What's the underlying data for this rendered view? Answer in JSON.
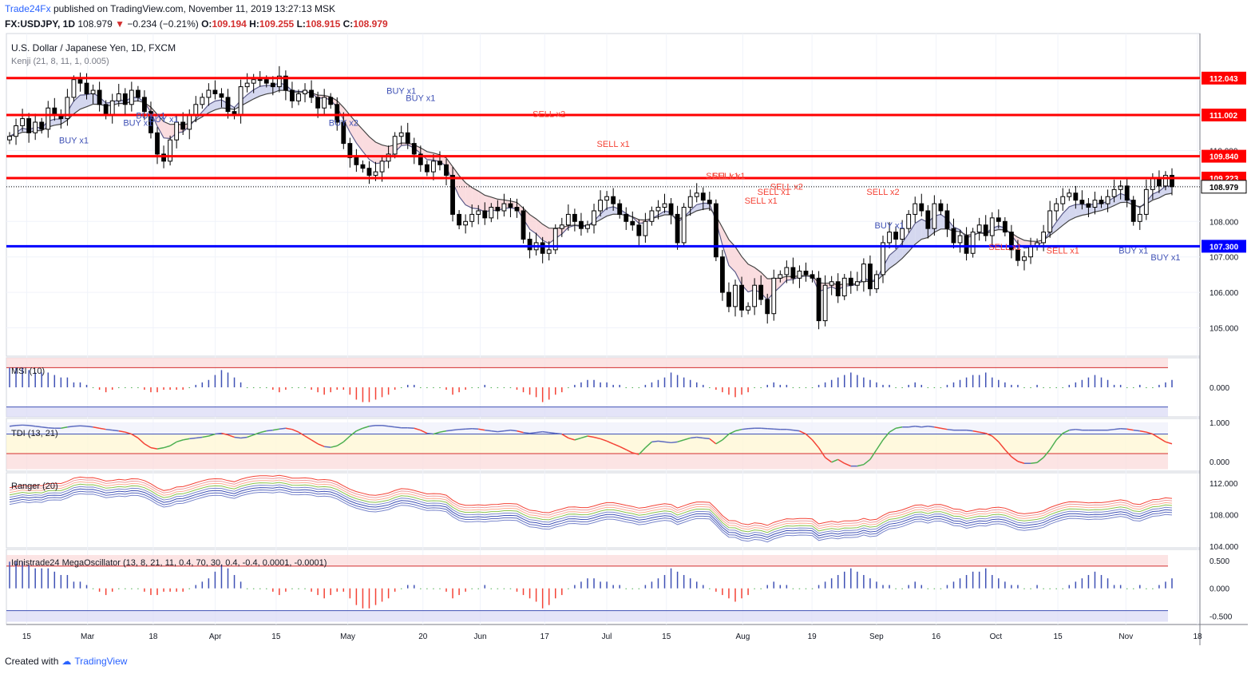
{
  "header": {
    "brand": "Trade24Fx",
    "published": "published on TradingView.com, November 11, 2019 13:27:13 MSK",
    "symbol": "FX:USDJPY, 1D",
    "last": "108.979",
    "change": "−0.234 (−0.21%)",
    "o_label": "O:",
    "o": "109.194",
    "h_label": "H:",
    "h": "109.255",
    "l_label": "L:",
    "l": "108.915",
    "c_label": "C:",
    "c": "108.979"
  },
  "footer": {
    "created_with": "Created with",
    "tradingview": "TradingView"
  },
  "colors": {
    "up": "#000000",
    "down": "#000000",
    "level_red": "#ff0000",
    "level_blue": "#0000ff",
    "buy": "#3f51b5",
    "sell": "#f44336",
    "grid": "#f0f3fa"
  },
  "chart_data": [
    {
      "type": "candlestick",
      "title": "U.S. Dollar / Japanese Yen, 1D, FXCM",
      "indicator": "Kenji (21, 8, 11, 1, 0.005)",
      "ylim": [
        104.2,
        113.3
      ],
      "y_ticks": [
        "112.000",
        "111.000",
        "110.000",
        "109.000",
        "108.000",
        "107.000",
        "106.000",
        "105.000"
      ],
      "x_ticks": [
        "15",
        "Mar",
        "18",
        "Apr",
        "15",
        "May",
        "20",
        "Jun",
        "17",
        "Jul",
        "15",
        "Aug",
        "19",
        "Sep",
        "16",
        "Oct",
        "15",
        "Nov",
        "18"
      ],
      "levels": [
        {
          "value": 112.043,
          "label": "112.043",
          "color": "#ff0000"
        },
        {
          "value": 111.002,
          "label": "111.002",
          "color": "#ff0000"
        },
        {
          "value": 109.84,
          "label": "109.840",
          "color": "#ff0000"
        },
        {
          "value": 109.223,
          "label": "109.223",
          "color": "#ff0000"
        },
        {
          "value": 107.3,
          "label": "107.300",
          "color": "#0000ff"
        }
      ],
      "last_price": {
        "value": 108.979,
        "label": "108.979"
      },
      "closes": [
        110.4,
        110.7,
        110.9,
        110.5,
        110.8,
        110.6,
        111.2,
        111.0,
        110.9,
        111.5,
        112.0,
        111.9,
        111.6,
        111.7,
        111.3,
        111.0,
        111.4,
        111.6,
        111.3,
        111.7,
        111.5,
        111.1,
        110.5,
        109.9,
        109.7,
        110.3,
        110.8,
        110.6,
        111.0,
        111.3,
        111.5,
        111.7,
        111.6,
        111.5,
        111.1,
        111.0,
        111.8,
        111.9,
        112.0,
        112.0,
        111.9,
        111.8,
        112.1,
        111.7,
        111.4,
        111.6,
        111.7,
        111.5,
        111.2,
        111.5,
        111.3,
        110.8,
        110.2,
        109.8,
        109.6,
        109.5,
        109.3,
        109.4,
        109.7,
        109.9,
        110.4,
        110.5,
        110.2,
        109.9,
        109.6,
        109.4,
        109.7,
        109.6,
        109.3,
        108.2,
        107.9,
        108.0,
        108.2,
        108.3,
        108.1,
        108.4,
        108.3,
        108.5,
        108.4,
        108.3,
        107.5,
        107.2,
        107.4,
        107.1,
        107.2,
        107.8,
        107.9,
        108.2,
        108.0,
        107.8,
        107.9,
        108.3,
        108.6,
        108.7,
        108.5,
        108.2,
        108.0,
        107.9,
        107.6,
        108.0,
        108.3,
        108.4,
        108.5,
        108.2,
        107.4,
        108.4,
        108.7,
        108.8,
        108.6,
        108.5,
        107.0,
        106.0,
        105.6,
        106.2,
        105.5,
        105.6,
        106.2,
        105.8,
        105.4,
        106.4,
        106.5,
        106.7,
        106.4,
        106.6,
        106.5,
        106.4,
        105.2,
        106.2,
        106.3,
        105.9,
        106.4,
        106.2,
        106.3,
        106.8,
        106.1,
        106.5,
        107.4,
        107.7,
        107.5,
        107.8,
        108.2,
        108.5,
        108.3,
        107.8,
        108.5,
        108.3,
        107.8,
        107.4,
        107.6,
        107.1,
        107.7,
        107.9,
        107.6,
        108.1,
        108.0,
        107.7,
        107.2,
        106.9,
        107.0,
        107.3,
        107.4,
        107.7,
        108.3,
        108.5,
        108.7,
        108.8,
        108.6,
        108.5,
        108.4,
        108.6,
        108.5,
        108.7,
        108.9,
        109.0,
        108.6,
        108.0,
        108.2,
        108.9,
        109.2,
        109.0,
        109.3,
        108.98
      ]
    },
    {
      "type": "bar",
      "title": "MSI (10)",
      "ylim": [
        -0.6,
        0.6
      ],
      "y_ticks": [
        "0.000"
      ],
      "values": [
        0.4,
        0.4,
        0.4,
        0.35,
        0.3,
        0.3,
        0.3,
        0.25,
        0.2,
        0.2,
        0.1,
        0.1,
        0.05,
        0.0,
        -0.05,
        -0.1,
        -0.05,
        0.0,
        0.0,
        0.0,
        0.0,
        -0.05,
        -0.1,
        -0.1,
        -0.05,
        -0.05,
        -0.05,
        -0.05,
        0.0,
        0.05,
        0.1,
        0.15,
        0.25,
        0.35,
        0.3,
        0.2,
        0.1,
        0.0,
        0.0,
        0.0,
        0.0,
        -0.05,
        -0.1,
        -0.05,
        0.0,
        0.0,
        0.0,
        -0.05,
        -0.1,
        -0.15,
        -0.1,
        -0.05,
        -0.05,
        -0.15,
        -0.25,
        -0.3,
        -0.3,
        -0.25,
        -0.2,
        -0.15,
        -0.05,
        0.0,
        0.05,
        0.05,
        0.0,
        0.0,
        0.0,
        0.0,
        -0.05,
        -0.15,
        -0.1,
        -0.05,
        0.0,
        0.0,
        0.05,
        0.0,
        0.0,
        0.0,
        0.0,
        -0.05,
        -0.1,
        -0.15,
        -0.2,
        -0.3,
        -0.25,
        -0.15,
        -0.1,
        0.0,
        0.05,
        0.1,
        0.15,
        0.15,
        0.1,
        0.1,
        0.05,
        0.05,
        0.0,
        0.0,
        0.0,
        0.05,
        0.1,
        0.15,
        0.2,
        0.3,
        0.25,
        0.2,
        0.15,
        0.1,
        0.05,
        0.0,
        -0.05,
        -0.1,
        -0.15,
        -0.2,
        -0.15,
        -0.1,
        0.0,
        0.0,
        0.05,
        0.1,
        0.05,
        0.05,
        0.0,
        0.0,
        0.0,
        0.0,
        0.05,
        0.1,
        0.15,
        0.2,
        0.25,
        0.3,
        0.25,
        0.2,
        0.15,
        0.1,
        0.05,
        0.05,
        0.0,
        0.0,
        0.05,
        0.1,
        0.05,
        0.0,
        0.0,
        0.0,
        0.05,
        0.1,
        0.15,
        0.2,
        0.25,
        0.25,
        0.3,
        0.2,
        0.15,
        0.1,
        0.05,
        0.05,
        0.0,
        0.0,
        0.05,
        0.0,
        0.0,
        0.0,
        0.0,
        0.05,
        0.1,
        0.15,
        0.2,
        0.25,
        0.2,
        0.15,
        0.05,
        0.05,
        0.0,
        0.0,
        0.05,
        0.0,
        0.0,
        0.05,
        0.1,
        0.15,
        0.15,
        0.1
      ]
    },
    {
      "type": "line",
      "title": "TDI (13, 21)",
      "ylim": [
        -0.25,
        1.1
      ],
      "y_ticks": [
        "1.000",
        "0.000"
      ],
      "values": [
        0.9,
        0.92,
        0.93,
        0.92,
        0.9,
        0.88,
        0.86,
        0.85,
        0.85,
        0.88,
        0.9,
        0.91,
        0.9,
        0.88,
        0.85,
        0.82,
        0.8,
        0.78,
        0.75,
        0.7,
        0.6,
        0.45,
        0.35,
        0.32,
        0.35,
        0.4,
        0.5,
        0.55,
        0.58,
        0.6,
        0.62,
        0.65,
        0.7,
        0.72,
        0.68,
        0.62,
        0.6,
        0.62,
        0.68,
        0.74,
        0.78,
        0.8,
        0.83,
        0.85,
        0.82,
        0.75,
        0.65,
        0.55,
        0.45,
        0.38,
        0.36,
        0.4,
        0.5,
        0.65,
        0.78,
        0.85,
        0.9,
        0.92,
        0.92,
        0.9,
        0.88,
        0.86,
        0.86,
        0.85,
        0.8,
        0.72,
        0.7,
        0.75,
        0.78,
        0.8,
        0.82,
        0.83,
        0.84,
        0.83,
        0.8,
        0.78,
        0.76,
        0.78,
        0.8,
        0.78,
        0.74,
        0.72,
        0.74,
        0.76,
        0.74,
        0.72,
        0.7,
        0.6,
        0.55,
        0.6,
        0.65,
        0.62,
        0.58,
        0.52,
        0.45,
        0.38,
        0.3,
        0.22,
        0.18,
        0.35,
        0.5,
        0.52,
        0.5,
        0.48,
        0.5,
        0.55,
        0.6,
        0.62,
        0.6,
        0.58,
        0.45,
        0.55,
        0.7,
        0.78,
        0.82,
        0.84,
        0.85,
        0.85,
        0.84,
        0.83,
        0.82,
        0.82,
        0.8,
        0.78,
        0.7,
        0.55,
        0.35,
        0.1,
        -0.02,
        0.05,
        -0.05,
        -0.12,
        -0.12,
        -0.08,
        0.05,
        0.3,
        0.55,
        0.75,
        0.85,
        0.88,
        0.88,
        0.9,
        0.88,
        0.9,
        0.88,
        0.85,
        0.82,
        0.8,
        0.8,
        0.8,
        0.78,
        0.75,
        0.72,
        0.65,
        0.5,
        0.3,
        0.12,
        0.0,
        -0.05,
        -0.05,
        -0.03,
        0.1,
        0.3,
        0.55,
        0.72,
        0.8,
        0.82,
        0.8,
        0.8,
        0.8,
        0.8,
        0.8,
        0.82,
        0.84,
        0.83,
        0.8,
        0.78,
        0.75,
        0.7,
        0.6,
        0.5,
        0.45,
        0.48
      ]
    },
    {
      "type": "line",
      "title": "Ranger (20)",
      "ylim": [
        103.8,
        113.3
      ],
      "y_ticks": [
        "112.000",
        "108.000",
        "104.000"
      ]
    },
    {
      "type": "bar",
      "title": "Idnistrade24 MegaOscillator (13, 8, 21, 11, 0.4, 70, 30, 0.4, -0.4, 0.0001, -0.0001)",
      "ylim": [
        -0.65,
        0.7
      ],
      "y_ticks": [
        "0.500",
        "0.000",
        "-0.500"
      ]
    }
  ],
  "annotations": {
    "buy": [
      {
        "i": 10,
        "text": "BUY x1",
        "y": 110.2
      },
      {
        "i": 22,
        "text": "BUY x1",
        "y": 110.9
      },
      {
        "i": 20,
        "text": "BUY x1",
        "y": 110.7
      },
      {
        "i": 24,
        "text": "BUY x1",
        "y": 110.8
      },
      {
        "i": 52,
        "text": "BUY x2",
        "y": 110.7
      },
      {
        "i": 61,
        "text": "BUY x1",
        "y": 111.6
      },
      {
        "i": 64,
        "text": "BUY x1",
        "y": 111.4
      },
      {
        "i": 137,
        "text": "BUY x1",
        "y": 107.8
      },
      {
        "i": 175,
        "text": "BUY x1",
        "y": 107.1
      },
      {
        "i": 180,
        "text": "BUY x1",
        "y": 106.9
      }
    ],
    "sell": [
      {
        "i": 84,
        "text": "SELL x2",
        "y": 110.95
      },
      {
        "i": 94,
        "text": "SELL x1",
        "y": 110.1
      },
      {
        "i": 111,
        "text": "SELL x1",
        "y": 109.2
      },
      {
        "i": 112,
        "text": "SELL x1",
        "y": 109.2
      },
      {
        "i": 119,
        "text": "SELL x1",
        "y": 108.75
      },
      {
        "i": 121,
        "text": "SELL x2",
        "y": 108.9
      },
      {
        "i": 117,
        "text": "SELL x1",
        "y": 108.5
      },
      {
        "i": 136,
        "text": "SELL x2",
        "y": 108.75
      },
      {
        "i": 155,
        "text": "SELL x1",
        "y": 107.2
      },
      {
        "i": 164,
        "text": "SELL x1",
        "y": 107.1
      }
    ]
  }
}
